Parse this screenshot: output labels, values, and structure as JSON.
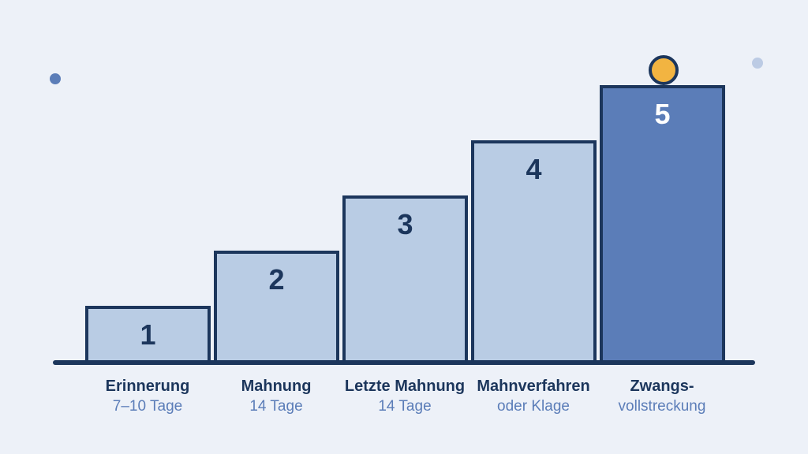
{
  "stages": [
    {
      "number": "1",
      "title": "Erinnerung",
      "subtitle": "7–10 Tage",
      "level": 1
    },
    {
      "number": "2",
      "title": "Mahnung",
      "subtitle": "14 Tage",
      "level": 2
    },
    {
      "number": "3",
      "title": "Letzte Mahnung",
      "subtitle": "14 Tage",
      "level": 3
    },
    {
      "number": "4",
      "title": "Mahnverfahren",
      "subtitle": "oder Klage",
      "level": 4
    },
    {
      "number": "5",
      "title": "Zwangs-",
      "subtitle": "vollstreckung",
      "level": 5
    }
  ],
  "colors": {
    "background": "#edf1f8",
    "outline": "#1c365c",
    "step_fill": "#b9cce4",
    "final_step_fill": "#5b7db8",
    "subtitle_text": "#5b7db8",
    "coin": "#f2b441"
  },
  "icons": [
    "coin-icon",
    "decorative-dot"
  ]
}
